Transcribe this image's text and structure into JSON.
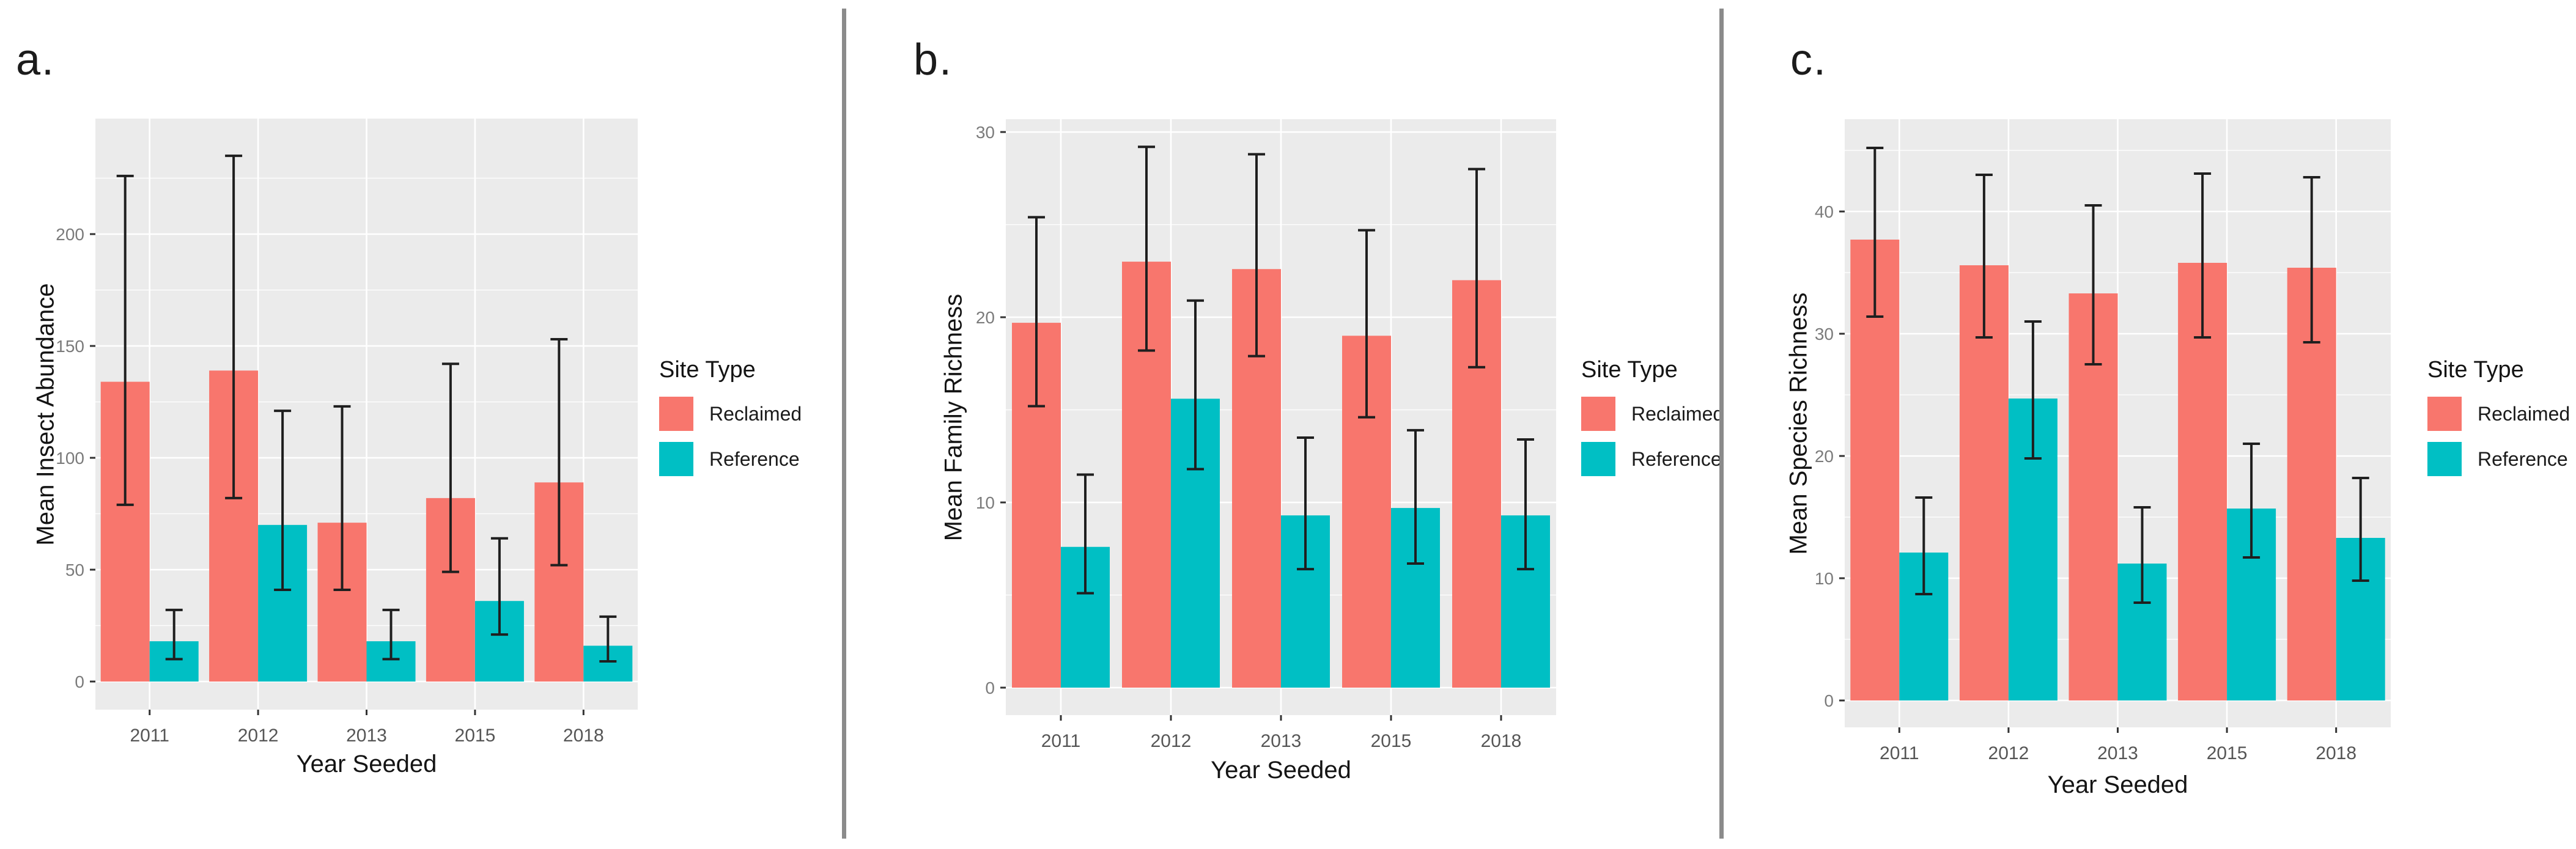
{
  "figure": {
    "background": "#FFFFFF",
    "divider_color": "#8B8B8B"
  },
  "colors": {
    "reclaimed": "#F8766D",
    "reference": "#00BFC4",
    "panel_background": "#EBEBEB",
    "gridline": "#FFFFFF",
    "error_bar": "#1F1F1F",
    "y_tick_text": "#7B7B7B",
    "x_tick_text": "#565656",
    "axis_title_text": "#141414",
    "tick_mark": "#333333"
  },
  "legend": {
    "title": "Site Type",
    "entries": [
      {
        "label": "Reclaimed",
        "color": "#F8766D"
      },
      {
        "label": "Reference",
        "color": "#00BFC4"
      }
    ]
  },
  "chart_data": [
    {
      "type": "bar",
      "panel_label": "a.",
      "title": "",
      "xlabel": "Year Seeded",
      "ylabel": "Mean Insect Abundance",
      "categories": [
        "2011",
        "2012",
        "2013",
        "2015",
        "2018"
      ],
      "series": [
        {
          "name": "Reclaimed",
          "color": "#F8766D",
          "values": [
            134,
            139,
            71,
            82,
            89
          ],
          "error_low": [
            79,
            82,
            41,
            49,
            52
          ],
          "error_high": [
            226,
            235,
            123,
            142,
            153
          ]
        },
        {
          "name": "Reference",
          "color": "#00BFC4",
          "values": [
            18,
            70,
            18,
            36,
            16
          ],
          "error_low": [
            10,
            41,
            10,
            21,
            9
          ],
          "error_high": [
            32,
            121,
            32,
            64,
            29
          ]
        }
      ],
      "yticks": [
        0,
        50,
        100,
        150,
        200
      ],
      "ylim": [
        -12.6,
        252
      ],
      "grid": true,
      "legend_position": "right"
    },
    {
      "type": "bar",
      "panel_label": "b.",
      "title": "",
      "xlabel": "Year Seeded",
      "ylabel": "Mean Family Richness",
      "categories": [
        "2011",
        "2012",
        "2013",
        "2015",
        "2018"
      ],
      "series": [
        {
          "name": "Reclaimed",
          "color": "#F8766D",
          "values": [
            19.7,
            23.0,
            22.6,
            19.0,
            22.0
          ],
          "error_low": [
            15.2,
            18.2,
            17.9,
            14.6,
            17.3
          ],
          "error_high": [
            25.4,
            29.2,
            28.8,
            24.7,
            28.0
          ]
        },
        {
          "name": "Reference",
          "color": "#00BFC4",
          "values": [
            7.6,
            15.6,
            9.3,
            9.7,
            9.3
          ],
          "error_low": [
            5.1,
            11.8,
            6.4,
            6.7,
            6.4
          ],
          "error_high": [
            11.5,
            20.9,
            13.5,
            13.9,
            13.4
          ]
        }
      ],
      "yticks": [
        0,
        10,
        20,
        30
      ],
      "ylim": [
        -1.5,
        30.7
      ],
      "grid": true,
      "legend_position": "right"
    },
    {
      "type": "bar",
      "panel_label": "c.",
      "title": "",
      "xlabel": "Year Seeded",
      "ylabel": "Mean Species Richness",
      "categories": [
        "2011",
        "2012",
        "2013",
        "2015",
        "2018"
      ],
      "series": [
        {
          "name": "Reclaimed",
          "color": "#F8766D",
          "values": [
            37.7,
            35.6,
            33.3,
            35.8,
            35.4
          ],
          "error_low": [
            31.4,
            29.7,
            27.5,
            29.7,
            29.3
          ],
          "error_high": [
            45.2,
            43.0,
            40.5,
            43.1,
            42.8
          ]
        },
        {
          "name": "Reference",
          "color": "#00BFC4",
          "values": [
            12.1,
            24.7,
            11.2,
            15.7,
            13.3
          ],
          "error_low": [
            8.7,
            19.8,
            8.0,
            11.7,
            9.8
          ],
          "error_high": [
            16.6,
            31.0,
            15.8,
            21.0,
            18.2
          ]
        }
      ],
      "yticks": [
        0,
        10,
        20,
        30,
        40
      ],
      "ylim": [
        -2.3,
        47.6
      ],
      "grid": true,
      "legend_position": "right"
    }
  ]
}
